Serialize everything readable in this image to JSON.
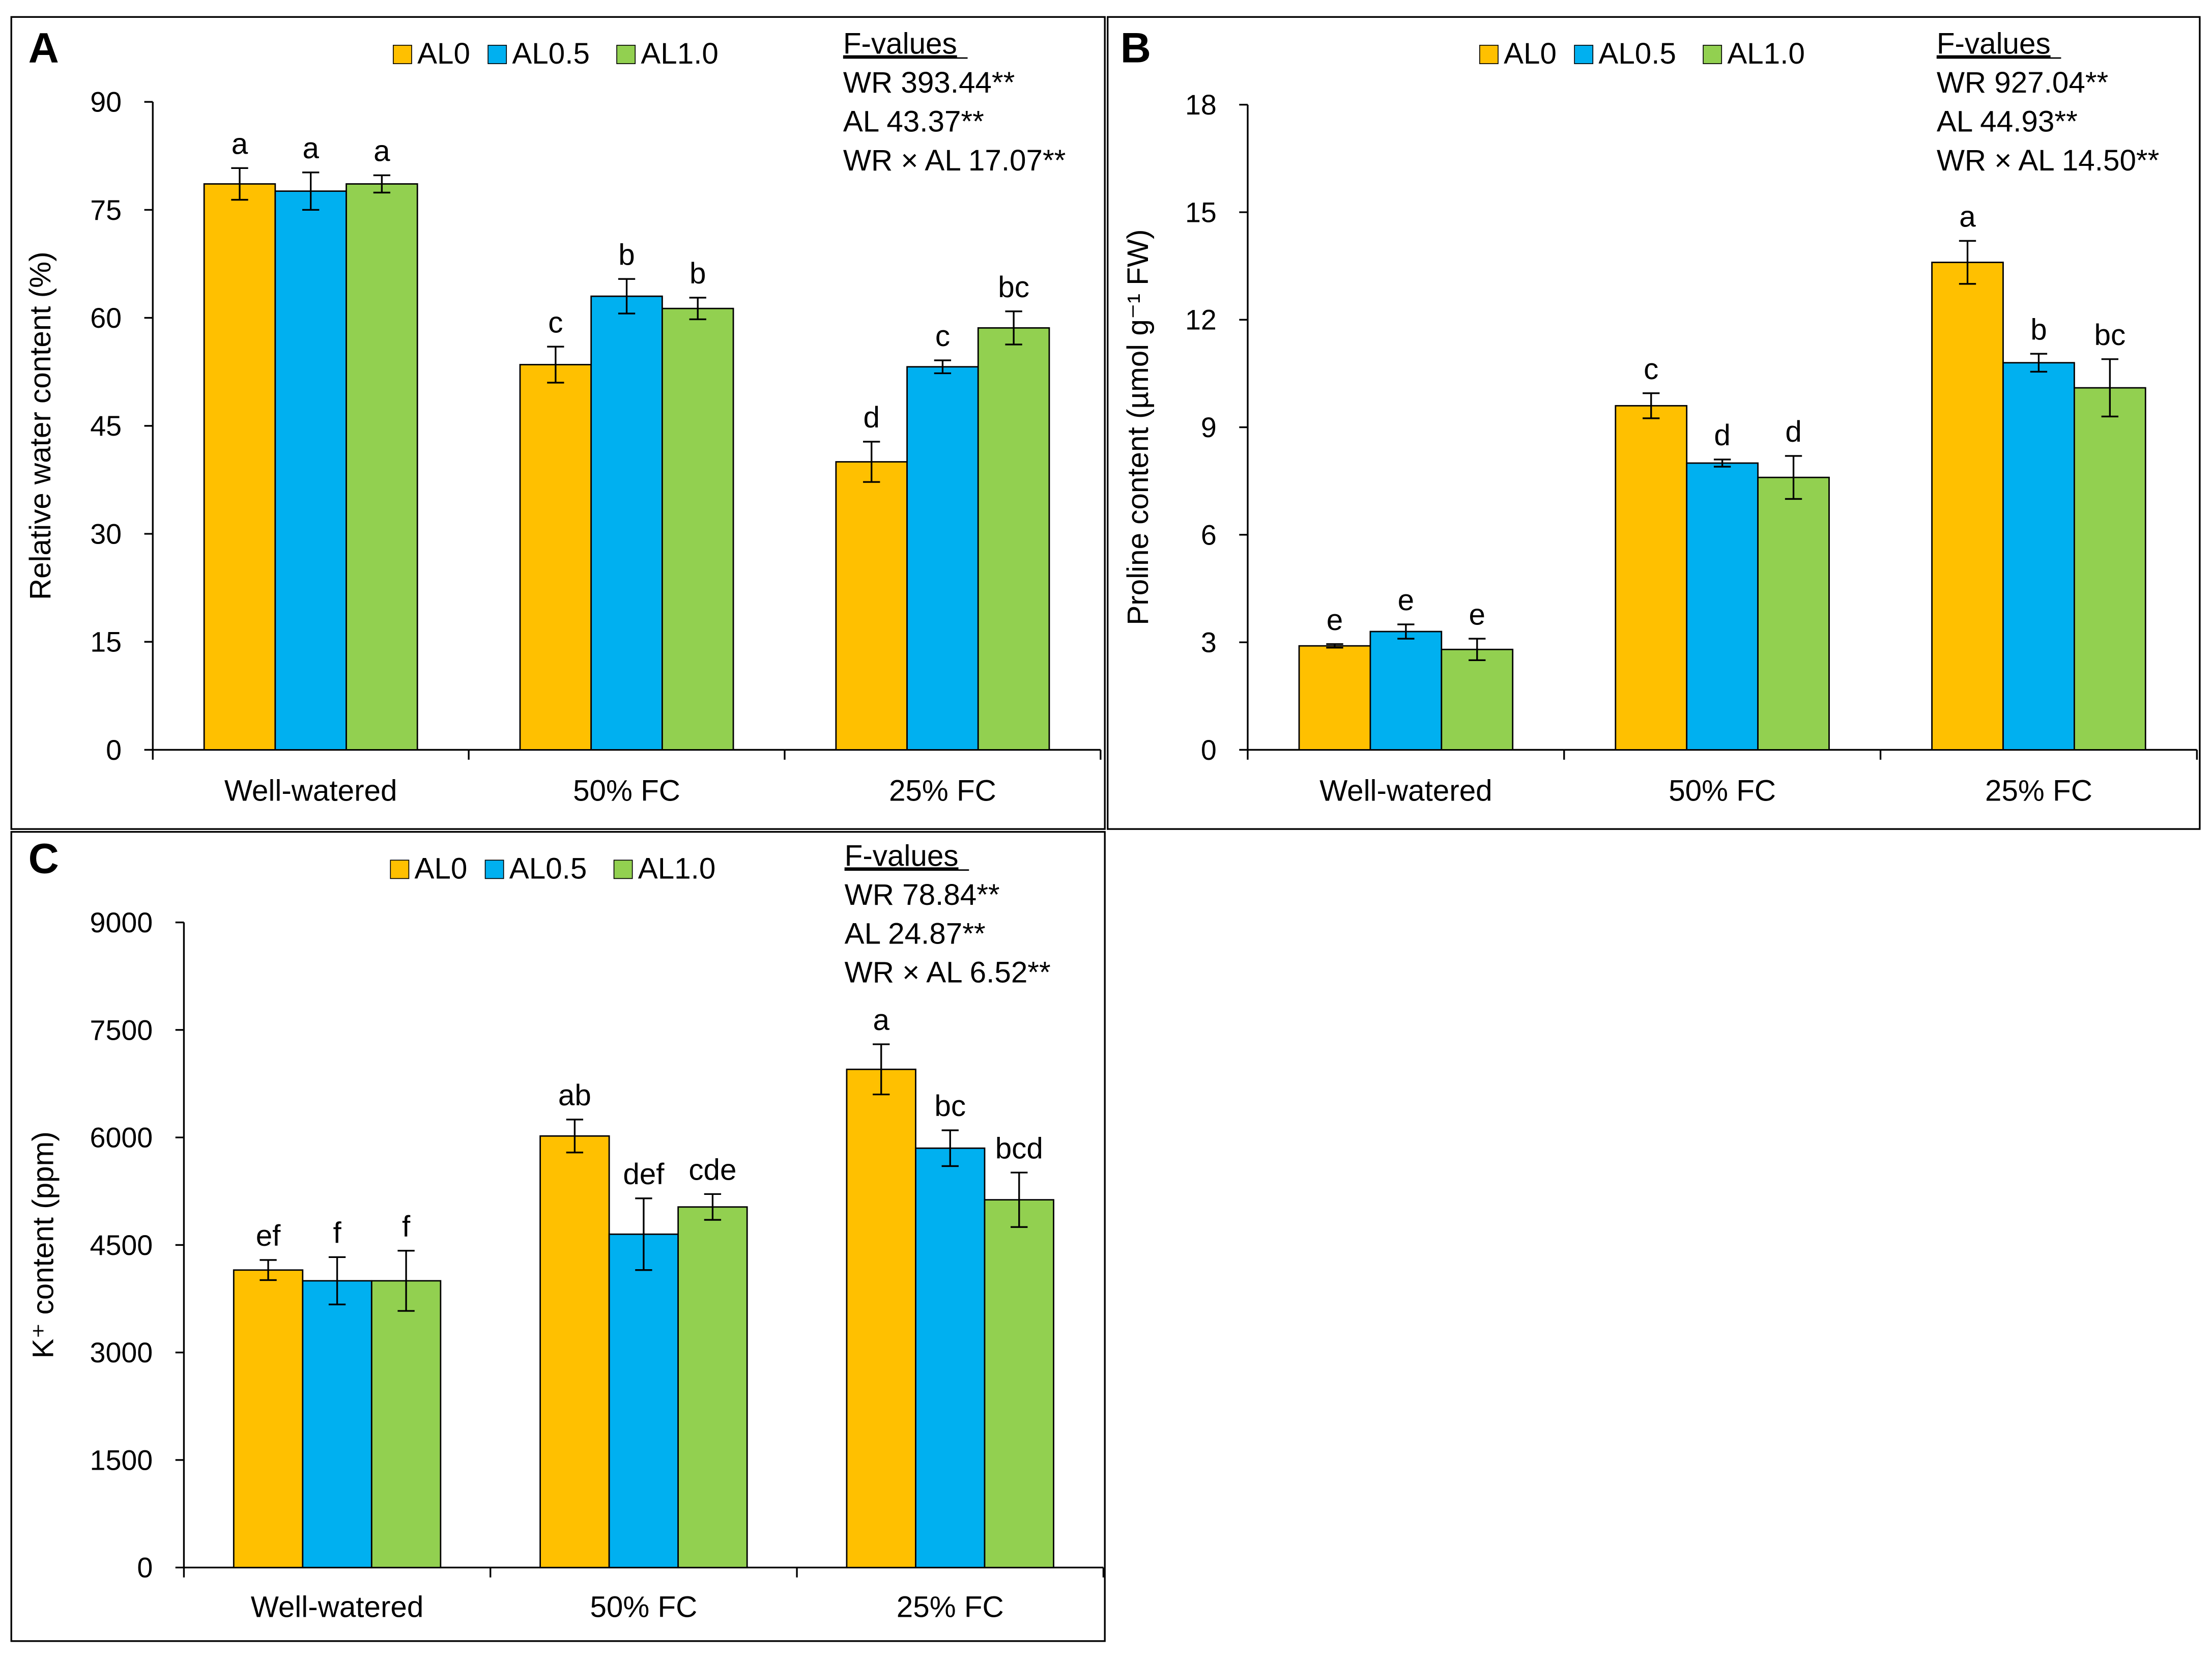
{
  "colors": {
    "AL0": "#FFC000",
    "AL0.5": "#00B0F0",
    "AL1.0": "#92D050",
    "axis": "#000000"
  },
  "chart_data": [
    {
      "panel": "A",
      "type": "bar",
      "ylabel": "Relative water content (%)",
      "ylim": [
        0,
        90
      ],
      "yticks": [
        0,
        15,
        30,
        45,
        60,
        75,
        90
      ],
      "categories": [
        "Well-watered",
        "50% FC",
        "25% FC"
      ],
      "legend": [
        "AL0",
        "AL0.5",
        "AL1.0"
      ],
      "legend_position": "top-center",
      "series": [
        {
          "name": "AL0",
          "values": [
            78.6,
            53.5,
            40.0
          ],
          "errors": [
            2.2,
            2.5,
            2.8
          ],
          "letters": [
            "a",
            "c",
            "d"
          ]
        },
        {
          "name": "AL0.5",
          "values": [
            77.6,
            63.0,
            53.2
          ],
          "errors": [
            2.6,
            2.4,
            0.9
          ],
          "letters": [
            "a",
            "b",
            "c"
          ]
        },
        {
          "name": "AL1.0",
          "values": [
            78.6,
            61.3,
            58.6
          ],
          "errors": [
            1.2,
            1.5,
            2.3
          ],
          "letters": [
            "a",
            "b",
            "bc"
          ]
        }
      ],
      "fvalues": {
        "title": "F-values",
        "lines": [
          "WR 393.44**",
          "AL 43.37**",
          "WR × AL 17.07**"
        ]
      }
    },
    {
      "panel": "B",
      "type": "bar",
      "ylabel": "Proline content (µmol g⁻¹ FW)",
      "ylim": [
        0,
        18
      ],
      "yticks": [
        0,
        3,
        6,
        9,
        12,
        15,
        18
      ],
      "categories": [
        "Well-watered",
        "50% FC",
        "25% FC"
      ],
      "legend": [
        "AL0",
        "AL0.5",
        "AL1.0"
      ],
      "legend_position": "top-center",
      "series": [
        {
          "name": "AL0",
          "values": [
            2.9,
            9.6,
            13.6
          ],
          "errors": [
            0.05,
            0.35,
            0.6
          ],
          "letters": [
            "e",
            "c",
            "a"
          ]
        },
        {
          "name": "AL0.5",
          "values": [
            3.3,
            8.0,
            10.8
          ],
          "errors": [
            0.2,
            0.1,
            0.25
          ],
          "letters": [
            "e",
            "d",
            "b"
          ]
        },
        {
          "name": "AL1.0",
          "values": [
            2.8,
            7.6,
            10.1
          ],
          "errors": [
            0.3,
            0.6,
            0.8
          ],
          "letters": [
            "e",
            "d",
            "bc"
          ]
        }
      ],
      "fvalues": {
        "title": "F-values",
        "lines": [
          "WR 927.04**",
          "AL 44.93**",
          "WR × AL 14.50**"
        ]
      }
    },
    {
      "panel": "C",
      "type": "bar",
      "ylabel": "K⁺ content (ppm)",
      "ylim": [
        0,
        9000
      ],
      "yticks": [
        0,
        1500,
        3000,
        4500,
        6000,
        7500,
        9000
      ],
      "categories": [
        "Well-watered",
        "50% FC",
        "25% FC"
      ],
      "legend": [
        "AL0",
        "AL0.5",
        "AL1.0"
      ],
      "legend_position": "top-center",
      "series": [
        {
          "name": "AL0",
          "values": [
            4150,
            6020,
            6950
          ],
          "errors": [
            140,
            230,
            350
          ],
          "letters": [
            "ef",
            "ab",
            "a"
          ]
        },
        {
          "name": "AL0.5",
          "values": [
            4000,
            4650,
            5850
          ],
          "errors": [
            330,
            500,
            250
          ],
          "letters": [
            "f",
            "def",
            "bc"
          ]
        },
        {
          "name": "AL1.0",
          "values": [
            4000,
            5030,
            5130
          ],
          "errors": [
            420,
            180,
            380
          ],
          "letters": [
            "f",
            "cde",
            "bcd"
          ]
        }
      ],
      "fvalues": {
        "title": "F-values",
        "lines": [
          "WR 78.84**",
          "AL 24.87**",
          "WR × AL 6.52**"
        ]
      }
    }
  ]
}
